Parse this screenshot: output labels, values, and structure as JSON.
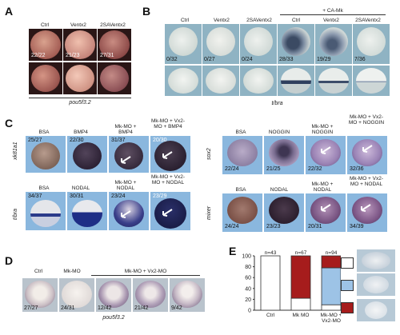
{
  "panels": {
    "A": {
      "label": "A",
      "headers": [
        "Ctrl",
        "Ventx2",
        "2SAVentx2"
      ],
      "counts": [
        "22/22",
        "21/23",
        "27/31"
      ],
      "gene": "pou5f3.2"
    },
    "B": {
      "label": "B",
      "group_header": "+ CA-Mk",
      "headers": [
        "Ctrl",
        "Ventx2",
        "2SAVentx2",
        "Ctrl",
        "Ventx2",
        "2SAVentx2"
      ],
      "counts": [
        "0/32",
        "0/27",
        "0/24",
        "28/33",
        "19/29",
        "7/36"
      ],
      "gene": "t/bra"
    },
    "C": {
      "label": "C",
      "left_top": {
        "gene": "xk81a1",
        "headers": [
          "BSA",
          "BMP4",
          "Mk-MO + BMP4",
          "Mk-MO + Vx2-MO + BMP4"
        ],
        "counts": [
          "25/27",
          "22/30",
          "31/37",
          "20/30"
        ]
      },
      "left_bottom": {
        "gene": "t/bra",
        "headers": [
          "BSA",
          "NODAL",
          "Mk-MO + NODAL",
          "Mk-MO + Vx2-MO + NODAL"
        ],
        "counts": [
          "34/37",
          "30/31",
          "23/24",
          "23/29"
        ]
      },
      "right_top": {
        "gene": "sox2",
        "headers": [
          "BSA",
          "NOGGIN",
          "Mk-MO + NOGGIN",
          "Mk-MO + Vx2-MO + NOGGIN"
        ],
        "counts": [
          "22/24",
          "21/25",
          "22/32",
          "32/36"
        ]
      },
      "right_bottom": {
        "gene": "mixer",
        "headers": [
          "BSA",
          "NODAL",
          "Mk-MO + NODAL",
          "Mk-MO + Vx2-MO + NODAL"
        ],
        "counts": [
          "24/24",
          "23/23",
          "20/31",
          "34/39"
        ]
      }
    },
    "D": {
      "label": "D",
      "headers": [
        "Ctrl",
        "Mk-MO",
        "Mk-MO + Vx2-MO"
      ],
      "counts": [
        "27/27",
        "24/31",
        "12/42",
        "21/42",
        "9/42"
      ],
      "gene": "pou5f3.2"
    },
    "E": {
      "label": "E"
    }
  },
  "chart_data": {
    "type": "bar",
    "stacked": true,
    "categories": [
      "Ctrl",
      "Mk MO",
      "Mk-MO + Vx2-MO"
    ],
    "n_labels": [
      "n=43",
      "n=67",
      "n=94"
    ],
    "series": [
      {
        "values": [
          100,
          22,
          10
        ],
        "color": "#ffffff"
      },
      {
        "values": [
          0,
          0,
          68
        ],
        "color": "#9dc3e6"
      },
      {
        "values": [
          0,
          78,
          22
        ],
        "color": "#a61c1c"
      }
    ],
    "ylim": [
      0,
      100
    ],
    "yticks": [
      "0",
      "20",
      "40",
      "60",
      "80",
      "100"
    ],
    "legend_position": "right",
    "legend_colors": [
      "#ffffff",
      "#9dc3e6",
      "#a61c1c"
    ]
  }
}
